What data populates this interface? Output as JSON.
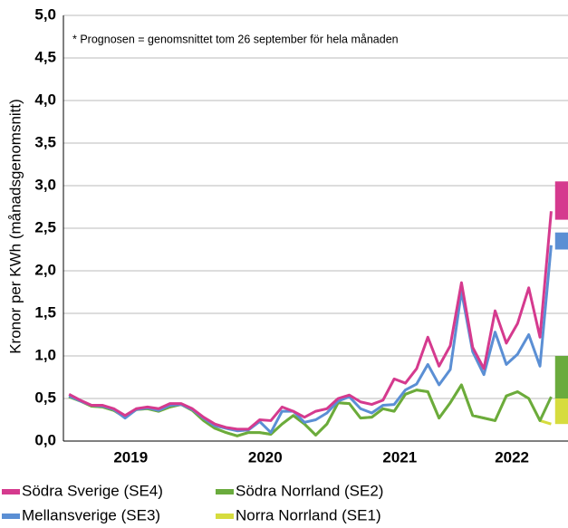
{
  "chart_data": {
    "type": "line",
    "ylabel": "Kronor per KWh (månadsgenomsnitt)",
    "annotation": "* Prognosen = genomsnittet tom 26 september för hela månaden",
    "categories": [
      null,
      null,
      null,
      null,
      null,
      "2019",
      null,
      null,
      null,
      null,
      null,
      null,
      null,
      null,
      null,
      null,
      null,
      "2020",
      null,
      null,
      null,
      null,
      null,
      null,
      null,
      null,
      null,
      null,
      null,
      "2021",
      null,
      null,
      null,
      null,
      null,
      null,
      null,
      null,
      null,
      "2022",
      null,
      null,
      null,
      null
    ],
    "ylim": [
      0,
      5
    ],
    "yticks": [
      {
        "value": 0,
        "label": "0,0"
      },
      {
        "value": 0.5,
        "label": "0,5"
      },
      {
        "value": 1,
        "label": "1,0"
      },
      {
        "value": 1.5,
        "label": "1,5"
      },
      {
        "value": 2,
        "label": "2,0"
      },
      {
        "value": 2.5,
        "label": "2,5"
      },
      {
        "value": 3,
        "label": "3,0"
      },
      {
        "value": 3.5,
        "label": "3,5"
      },
      {
        "value": 4,
        "label": "4,0"
      },
      {
        "value": 4.5,
        "label": "4,5"
      },
      {
        "value": 5,
        "label": "5,0"
      }
    ],
    "grid": true,
    "series": [
      {
        "name": "Norra Norrland (SE1)",
        "color": "#d6dc3e",
        "values": [
          0.52,
          0.47,
          0.41,
          0.4,
          0.36,
          0.28,
          0.37,
          0.38,
          0.35,
          0.4,
          0.43,
          0.36,
          0.24,
          0.15,
          0.1,
          0.06,
          0.1,
          0.1,
          0.08,
          0.2,
          0.3,
          0.2,
          0.07,
          0.2,
          0.45,
          0.44,
          0.27,
          0.28,
          0.38,
          0.35,
          0.55,
          0.6,
          0.58,
          0.27,
          0.45,
          0.66,
          0.3,
          0.27,
          0.24,
          0.53,
          0.58,
          0.5,
          0.24,
          0.2
        ],
        "forecast": [
          0.2,
          0.5
        ]
      },
      {
        "name": "Södra Norrland (SE2)",
        "color": "#6aab3d",
        "values": [
          0.52,
          0.47,
          0.41,
          0.4,
          0.36,
          0.28,
          0.37,
          0.38,
          0.35,
          0.4,
          0.43,
          0.36,
          0.24,
          0.15,
          0.1,
          0.06,
          0.1,
          0.1,
          0.08,
          0.2,
          0.3,
          0.2,
          0.07,
          0.2,
          0.45,
          0.44,
          0.27,
          0.28,
          0.38,
          0.35,
          0.55,
          0.6,
          0.58,
          0.27,
          0.45,
          0.66,
          0.3,
          0.27,
          0.24,
          0.53,
          0.58,
          0.5,
          0.24,
          0.52
        ],
        "forecast": [
          0.5,
          1.0
        ]
      },
      {
        "name": "Mellansverige (SE3)",
        "color": "#5b8fd4",
        "values": [
          0.53,
          0.47,
          0.42,
          0.41,
          0.37,
          0.27,
          0.37,
          0.39,
          0.36,
          0.42,
          0.43,
          0.37,
          0.27,
          0.18,
          0.15,
          0.12,
          0.13,
          0.23,
          0.1,
          0.35,
          0.35,
          0.22,
          0.25,
          0.33,
          0.47,
          0.52,
          0.38,
          0.33,
          0.42,
          0.43,
          0.6,
          0.67,
          0.9,
          0.66,
          0.84,
          1.76,
          1.05,
          0.78,
          1.28,
          0.9,
          1.02,
          1.25,
          0.88,
          2.3
        ],
        "forecast": [
          2.25,
          2.45
        ]
      },
      {
        "name": "Södra Sverige (SE4)",
        "color": "#d53a8e",
        "values": [
          0.55,
          0.48,
          0.42,
          0.42,
          0.38,
          0.3,
          0.38,
          0.4,
          0.38,
          0.44,
          0.44,
          0.38,
          0.28,
          0.2,
          0.16,
          0.14,
          0.14,
          0.25,
          0.24,
          0.4,
          0.35,
          0.28,
          0.35,
          0.38,
          0.5,
          0.54,
          0.46,
          0.43,
          0.48,
          0.73,
          0.68,
          0.85,
          1.22,
          0.88,
          1.12,
          1.86,
          1.1,
          0.85,
          1.53,
          1.15,
          1.38,
          1.8,
          1.22,
          2.7
        ],
        "forecast": [
          2.6,
          3.05
        ]
      }
    ]
  }
}
